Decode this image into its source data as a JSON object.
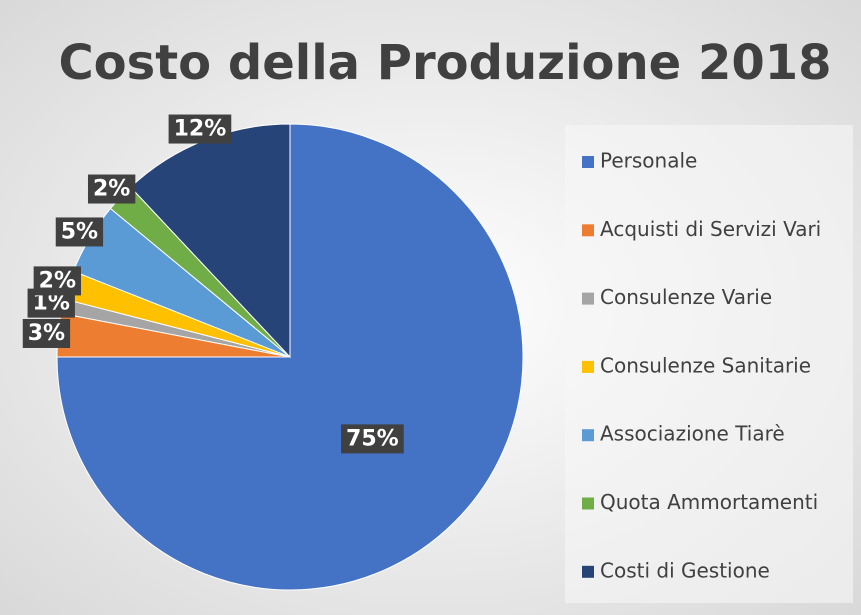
{
  "chart_data": {
    "type": "pie",
    "title": "Costo della Produzione 2018",
    "categories": [
      "Personale",
      "Acquisti di Servizi Vari",
      "Consulenze Varie",
      "Consulenze Sanitarie",
      "Associazione Tiarè",
      "Quota Ammortamenti",
      "Costi di Gestione"
    ],
    "values": [
      75,
      3,
      1,
      2,
      5,
      2,
      12
    ],
    "value_labels": [
      "75%",
      "3%",
      "1%",
      "2%",
      "5%",
      "2%",
      "12%"
    ],
    "colors": [
      "#4472c4",
      "#ed7d31",
      "#a5a5a5",
      "#ffc000",
      "#5b9bd5",
      "#70ad47",
      "#264478"
    ],
    "legend": "right"
  }
}
